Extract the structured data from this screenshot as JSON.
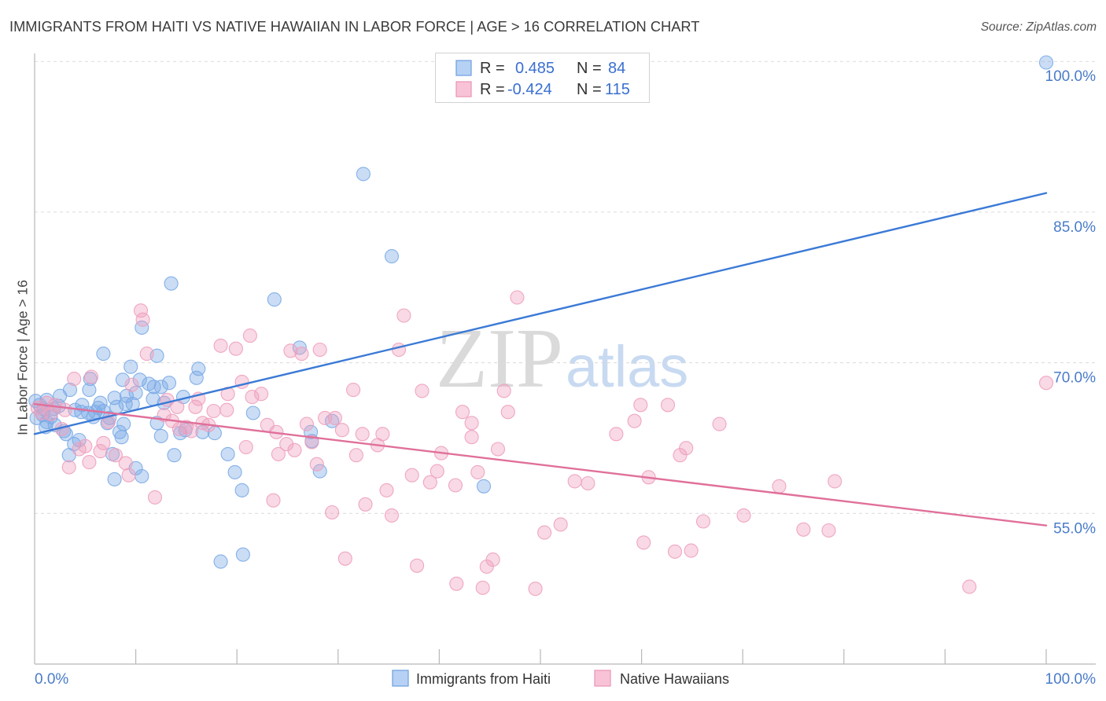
{
  "chart_data": {
    "type": "scatter",
    "title": "IMMIGRANTS FROM HAITI VS NATIVE HAWAIIAN IN LABOR FORCE | AGE > 16 CORRELATION CHART",
    "source": "Source: ZipAtlas.com",
    "ylabel": "In Labor Force | Age > 16",
    "xlim": [
      0,
      100
    ],
    "ylim": [
      40,
      100.8
    ],
    "x_tick_labels": {
      "min": "0.0%",
      "max": "100.0%"
    },
    "x_minor_ticks": [
      10,
      20,
      30,
      40,
      50,
      60,
      70,
      80,
      90,
      100
    ],
    "y_ticks": [
      {
        "value": 100,
        "label": "100.0%"
      },
      {
        "value": 85,
        "label": "85.0%"
      },
      {
        "value": 70,
        "label": "70.0%"
      },
      {
        "value": 55,
        "label": "55.0%"
      }
    ],
    "r_label": "R =",
    "n_label": "N =",
    "series": [
      {
        "name": "Immigrants from Haiti",
        "r": "0.485",
        "n": "84",
        "point_color": "#7aaae6",
        "square_fill": "#b7d1f4",
        "square_stroke": "#6b9fe0",
        "line_color": "#3b7ad6",
        "trend": [
          [
            0,
            62.9
          ],
          [
            100,
            86.9
          ]
        ],
        "points": [
          [
            100,
            99.9
          ],
          [
            32.5,
            88.8
          ],
          [
            35.3,
            80.6
          ],
          [
            13.5,
            77.9
          ],
          [
            23.7,
            76.3
          ],
          [
            10.6,
            73.5
          ],
          [
            6.8,
            70.9
          ],
          [
            12.1,
            70.7
          ],
          [
            26.2,
            71.5
          ],
          [
            9.5,
            69.6
          ],
          [
            16.2,
            69.4
          ],
          [
            16.0,
            68.5
          ],
          [
            5.5,
            68.4
          ],
          [
            8.7,
            68.3
          ],
          [
            10.4,
            68.3
          ],
          [
            11.3,
            67.9
          ],
          [
            13.3,
            68.0
          ],
          [
            11.8,
            67.6
          ],
          [
            12.5,
            67.6
          ],
          [
            3.5,
            67.3
          ],
          [
            5.4,
            67.3
          ],
          [
            2.5,
            66.7
          ],
          [
            10.0,
            67.0
          ],
          [
            9.1,
            66.7
          ],
          [
            7.9,
            66.5
          ],
          [
            14.7,
            66.6
          ],
          [
            11.7,
            66.4
          ],
          [
            1.2,
            66.3
          ],
          [
            0.1,
            66.2
          ],
          [
            2.4,
            65.7
          ],
          [
            4.7,
            65.8
          ],
          [
            6.5,
            66.0
          ],
          [
            6.3,
            65.5
          ],
          [
            9.0,
            65.9
          ],
          [
            8.1,
            65.6
          ],
          [
            9.7,
            65.9
          ],
          [
            12.8,
            66.0
          ],
          [
            0.9,
            65.4
          ],
          [
            1.9,
            65.4
          ],
          [
            4.0,
            65.3
          ],
          [
            4.6,
            65.1
          ],
          [
            6.0,
            65.1
          ],
          [
            6.8,
            65.2
          ],
          [
            5.3,
            65.0
          ],
          [
            0.8,
            64.8
          ],
          [
            1.6,
            64.6
          ],
          [
            21.6,
            65.0
          ],
          [
            5.8,
            64.6
          ],
          [
            7.4,
            64.5
          ],
          [
            0.2,
            64.5
          ],
          [
            1.2,
            64.1
          ],
          [
            7.2,
            64.0
          ],
          [
            2.0,
            63.8
          ],
          [
            8.8,
            63.9
          ],
          [
            12.1,
            64.0
          ],
          [
            1.1,
            63.6
          ],
          [
            29.4,
            64.2
          ],
          [
            14.9,
            63.3
          ],
          [
            2.9,
            63.2
          ],
          [
            8.4,
            63.1
          ],
          [
            14.4,
            63.0
          ],
          [
            16.6,
            63.1
          ],
          [
            17.8,
            63.0
          ],
          [
            27.3,
            63.1
          ],
          [
            3.1,
            62.9
          ],
          [
            12.5,
            62.7
          ],
          [
            8.6,
            62.6
          ],
          [
            4.4,
            62.3
          ],
          [
            3.9,
            61.9
          ],
          [
            27.4,
            62.2
          ],
          [
            7.7,
            60.9
          ],
          [
            13.8,
            60.8
          ],
          [
            19.1,
            60.9
          ],
          [
            3.4,
            60.8
          ],
          [
            10.0,
            59.5
          ],
          [
            28.2,
            59.2
          ],
          [
            19.8,
            59.1
          ],
          [
            10.6,
            58.7
          ],
          [
            7.9,
            58.4
          ],
          [
            44.4,
            57.7
          ],
          [
            20.5,
            57.3
          ],
          [
            20.6,
            50.9
          ],
          [
            18.4,
            50.2
          ],
          [
            0.5,
            65.8
          ]
        ]
      },
      {
        "name": "Native Hawaiians",
        "r": "-0.424",
        "n": "115",
        "point_color": "#ee9fbd",
        "square_fill": "#f8c3d6",
        "square_stroke": "#e994b4",
        "line_color": "#e0709a",
        "trend": [
          [
            0,
            65.9
          ],
          [
            100,
            53.8
          ]
        ],
        "points": [
          [
            100,
            68.0
          ],
          [
            10.5,
            75.2
          ],
          [
            10.7,
            74.3
          ],
          [
            47.7,
            76.5
          ],
          [
            36.5,
            74.7
          ],
          [
            21.3,
            72.7
          ],
          [
            18.4,
            71.7
          ],
          [
            19.9,
            71.4
          ],
          [
            28.2,
            71.3
          ],
          [
            25.3,
            71.2
          ],
          [
            36.0,
            71.3
          ],
          [
            26.4,
            70.9
          ],
          [
            11.1,
            70.9
          ],
          [
            5.6,
            68.6
          ],
          [
            3.9,
            68.4
          ],
          [
            20.5,
            68.1
          ],
          [
            9.6,
            67.8
          ],
          [
            31.5,
            67.3
          ],
          [
            38.3,
            67.2
          ],
          [
            46.4,
            67.2
          ],
          [
            22.4,
            66.9
          ],
          [
            19.1,
            66.9
          ],
          [
            21.5,
            66.6
          ],
          [
            16.2,
            66.4
          ],
          [
            13.1,
            66.3
          ],
          [
            1.2,
            66.0
          ],
          [
            2.0,
            65.8
          ],
          [
            59.9,
            65.8
          ],
          [
            62.6,
            65.8
          ],
          [
            14.1,
            65.6
          ],
          [
            15.9,
            65.6
          ],
          [
            19.0,
            65.3
          ],
          [
            17.7,
            65.2
          ],
          [
            42.3,
            65.1
          ],
          [
            46.8,
            65.1
          ],
          [
            0.7,
            65.0
          ],
          [
            12.8,
            64.8
          ],
          [
            29.7,
            64.5
          ],
          [
            28.7,
            64.5
          ],
          [
            13.6,
            64.2
          ],
          [
            59.3,
            64.2
          ],
          [
            7.3,
            64.1
          ],
          [
            26.9,
            63.9
          ],
          [
            23.0,
            63.8
          ],
          [
            43.2,
            64.0
          ],
          [
            67.7,
            63.9
          ],
          [
            16.6,
            64.0
          ],
          [
            17.2,
            63.8
          ],
          [
            15.0,
            63.6
          ],
          [
            14.3,
            63.4
          ],
          [
            2.7,
            63.4
          ],
          [
            30.4,
            63.3
          ],
          [
            23.9,
            63.1
          ],
          [
            15.5,
            63.2
          ],
          [
            32.4,
            62.9
          ],
          [
            34.4,
            62.9
          ],
          [
            57.5,
            62.9
          ],
          [
            43.2,
            62.6
          ],
          [
            27.4,
            62.1
          ],
          [
            24.9,
            61.9
          ],
          [
            6.8,
            62.0
          ],
          [
            5.0,
            61.7
          ],
          [
            33.9,
            61.8
          ],
          [
            20.9,
            61.6
          ],
          [
            25.7,
            61.3
          ],
          [
            4.4,
            61.4
          ],
          [
            64.4,
            61.5
          ],
          [
            45.8,
            61.4
          ],
          [
            6.5,
            61.2
          ],
          [
            40.2,
            61.0
          ],
          [
            24.1,
            60.9
          ],
          [
            31.8,
            60.8
          ],
          [
            63.8,
            60.8
          ],
          [
            8.0,
            60.8
          ],
          [
            9.0,
            60.0
          ],
          [
            27.9,
            59.9
          ],
          [
            3.4,
            59.6
          ],
          [
            5.4,
            60.1
          ],
          [
            39.8,
            59.2
          ],
          [
            43.8,
            59.1
          ],
          [
            37.3,
            58.8
          ],
          [
            9.3,
            58.8
          ],
          [
            60.7,
            58.6
          ],
          [
            79.1,
            58.2
          ],
          [
            53.4,
            58.2
          ],
          [
            39.1,
            58.1
          ],
          [
            54.7,
            58.0
          ],
          [
            41.6,
            57.8
          ],
          [
            73.6,
            57.7
          ],
          [
            34.8,
            57.3
          ],
          [
            11.9,
            56.6
          ],
          [
            23.6,
            56.3
          ],
          [
            32.7,
            55.9
          ],
          [
            29.4,
            55.1
          ],
          [
            35.3,
            54.8
          ],
          [
            70.1,
            54.8
          ],
          [
            66.1,
            54.2
          ],
          [
            52.0,
            53.9
          ],
          [
            50.4,
            53.1
          ],
          [
            76.0,
            53.4
          ],
          [
            78.5,
            53.3
          ],
          [
            60.2,
            52.1
          ],
          [
            64.9,
            51.3
          ],
          [
            63.3,
            51.2
          ],
          [
            30.7,
            50.5
          ],
          [
            45.3,
            50.4
          ],
          [
            37.8,
            49.8
          ],
          [
            44.7,
            49.7
          ],
          [
            41.7,
            48.0
          ],
          [
            44.3,
            47.6
          ],
          [
            49.5,
            47.5
          ],
          [
            92.4,
            47.7
          ],
          [
            0.3,
            65.5
          ],
          [
            1.6,
            64.9
          ],
          [
            3.0,
            65.3
          ]
        ]
      }
    ]
  },
  "watermark": {
    "zip": "ZIP",
    "atlas": "atlas"
  }
}
